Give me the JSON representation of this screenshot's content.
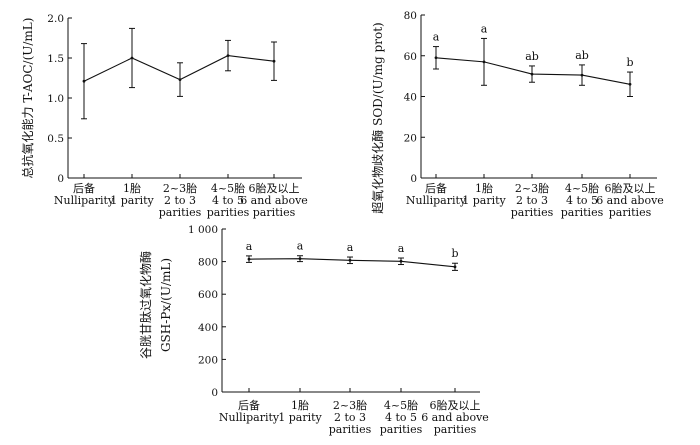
{
  "chart_data": [
    {
      "type": "line",
      "ylabel": "总抗氧化能力  T-AOC/(U/mL)",
      "ylim": [
        0,
        2.0
      ],
      "yticks": [
        "0",
        "0.5",
        "1.0",
        "1.5",
        "2.0"
      ],
      "categories": [
        {
          "cn": "后备",
          "en": [
            "Nulliparity"
          ]
        },
        {
          "cn": "1胎",
          "en": [
            "1 parity"
          ]
        },
        {
          "cn": "2~3胎",
          "en": [
            "2 to 3",
            "parities"
          ]
        },
        {
          "cn": "4~5胎",
          "en": [
            "4 to 5",
            "parities"
          ]
        },
        {
          "cn": "6胎及以上",
          "en": [
            "6 and above",
            "parities"
          ]
        }
      ],
      "values": [
        1.21,
        1.5,
        1.23,
        1.53,
        1.46
      ],
      "errors": [
        0.47,
        0.37,
        0.21,
        0.19,
        0.24
      ],
      "letters": []
    },
    {
      "type": "line",
      "ylabel": "超氧化物歧化酶  SOD/(U/mg prot)",
      "ylim": [
        0,
        80
      ],
      "yticks": [
        "0",
        "20",
        "40",
        "60",
        "80"
      ],
      "categories": [
        {
          "cn": "后备",
          "en": [
            "Nulliparity"
          ]
        },
        {
          "cn": "1胎",
          "en": [
            "1 parity"
          ]
        },
        {
          "cn": "2~3胎",
          "en": [
            "2 to 3",
            "parities"
          ]
        },
        {
          "cn": "4~5胎",
          "en": [
            "4 to 5",
            "parities"
          ]
        },
        {
          "cn": "6胎及以上",
          "en": [
            "6 and above",
            "parities"
          ]
        }
      ],
      "values": [
        59,
        57,
        51,
        50.5,
        46
      ],
      "errors": [
        5.5,
        11.5,
        4,
        5,
        6
      ],
      "letters": [
        "a",
        "a",
        "ab",
        "ab",
        "b"
      ]
    },
    {
      "type": "line",
      "ylabel": [
        "谷胱甘肽过氧化物酶",
        "GSH-Px/(U/mL)"
      ],
      "ylim": [
        0,
        1000
      ],
      "yticks": [
        "0",
        "200",
        "400",
        "600",
        "800",
        "1 000"
      ],
      "categories": [
        {
          "cn": "后备",
          "en": [
            "Nulliparity"
          ]
        },
        {
          "cn": "1胎",
          "en": [
            "1 parity"
          ]
        },
        {
          "cn": "2~3胎",
          "en": [
            "2 to 3",
            "parities"
          ]
        },
        {
          "cn": "4~5胎",
          "en": [
            "4 to 5",
            "parities"
          ]
        },
        {
          "cn": "6胎及以上",
          "en": [
            "6 and above",
            "parities"
          ]
        }
      ],
      "values": [
        815,
        818,
        808,
        802,
        768
      ],
      "errors": [
        20,
        18,
        20,
        20,
        22
      ],
      "letters": [
        "a",
        "a",
        "a",
        "a",
        "b"
      ]
    }
  ]
}
